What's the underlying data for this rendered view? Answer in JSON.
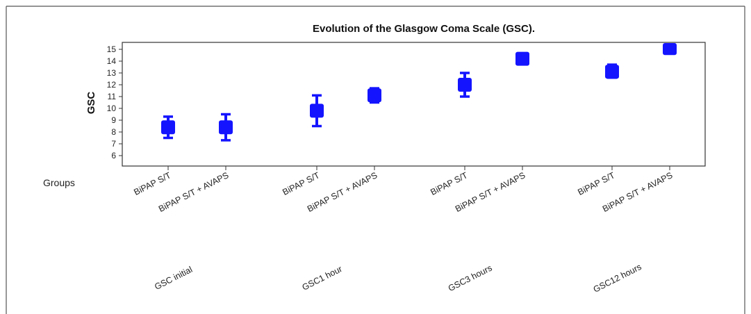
{
  "chart_data": {
    "type": "scatter",
    "title": "Evolution of the Glasgow Coma Scale (GSC).",
    "ylabel": "GSC",
    "xlabel": "",
    "ylim": [
      5,
      15.5
    ],
    "yticks": [
      6,
      7,
      8,
      9,
      10,
      11,
      12,
      13,
      14,
      15
    ],
    "row_label": "Groups",
    "categories": [
      "BiPAP S/T",
      "BiPAP S/T + AVAPS",
      "BiPAP S/T",
      "BiPAP S/T + AVAPS",
      "BiPAP S/T",
      "BiPAP S/T + AVAPS",
      "BiPAP S/T",
      "BiPAP S/T + AVAPS"
    ],
    "groups": [
      "GSC initial",
      "GSC1 hour",
      "GSC3 hours",
      "GSC12 hours"
    ],
    "points": [
      {
        "group": "GSC initial",
        "category": "BiPAP S/T",
        "mean": 8.4,
        "low": 7.5,
        "high": 9.3
      },
      {
        "group": "GSC initial",
        "category": "BiPAP S/T + AVAPS",
        "mean": 8.4,
        "low": 7.3,
        "high": 9.5
      },
      {
        "group": "GSC1 hour",
        "category": "BiPAP S/T",
        "mean": 9.8,
        "low": 8.5,
        "high": 11.1
      },
      {
        "group": "GSC1 hour",
        "category": "BiPAP S/T + AVAPS",
        "mean": 11.1,
        "low": 10.5,
        "high": 11.7
      },
      {
        "group": "GSC3 hours",
        "category": "BiPAP S/T",
        "mean": 12.0,
        "low": 11.0,
        "high": 13.0
      },
      {
        "group": "GSC3 hours",
        "category": "BiPAP S/T + AVAPS",
        "mean": 14.2,
        "low": 13.8,
        "high": 14.6
      },
      {
        "group": "GSC12 hours",
        "category": "BiPAP S/T",
        "mean": 13.1,
        "low": 12.6,
        "high": 13.7
      },
      {
        "group": "GSC12 hours",
        "category": "BiPAP S/T + AVAPS",
        "mean": 15.1,
        "low": 15.0,
        "high": 15.2
      }
    ],
    "marker_color": "#1414ff",
    "grid": false,
    "legend": "none"
  }
}
